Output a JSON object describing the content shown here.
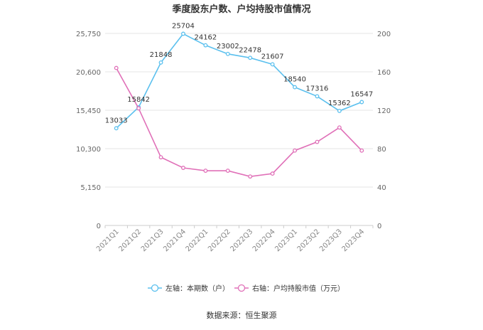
{
  "chart_data": {
    "type": "line",
    "title": "季度股东户数、户均持股市值情况",
    "categories": [
      "2021Q1",
      "2021Q2",
      "2021Q3",
      "2021Q4",
      "2022Q1",
      "2022Q2",
      "2022Q3",
      "2022Q4",
      "2023Q1",
      "2023Q2",
      "2023Q3",
      "2023Q4"
    ],
    "left_axis": {
      "ticks": [
        "0",
        "5,150",
        "10,300",
        "15,450",
        "20,600",
        "25,750"
      ],
      "ylim": [
        0,
        25750
      ]
    },
    "right_axis": {
      "ticks": [
        "0",
        "40",
        "80",
        "120",
        "160",
        "200"
      ],
      "ylim": [
        0,
        200
      ]
    },
    "series": [
      {
        "name": "左轴：本期数（户）",
        "axis": "left",
        "color": "#5bc0ee",
        "values": [
          13033,
          15842,
          21848,
          25704,
          24162,
          23002,
          22478,
          21607,
          18540,
          17316,
          15362,
          16547
        ],
        "labels": [
          "13033",
          "15842",
          "21848",
          "25704",
          "24162",
          "23002",
          "22478",
          "21607",
          "18540",
          "17316",
          "15362",
          "16547"
        ]
      },
      {
        "name": "右轴：户均持股市值（万元）",
        "axis": "right",
        "color": "#e070b8",
        "values": [
          164,
          122,
          71,
          60,
          57,
          57,
          51,
          54,
          78,
          87,
          102,
          78
        ]
      }
    ],
    "grid": true,
    "legend_position": "bottom"
  },
  "source": "数据来源：恒生聚源"
}
